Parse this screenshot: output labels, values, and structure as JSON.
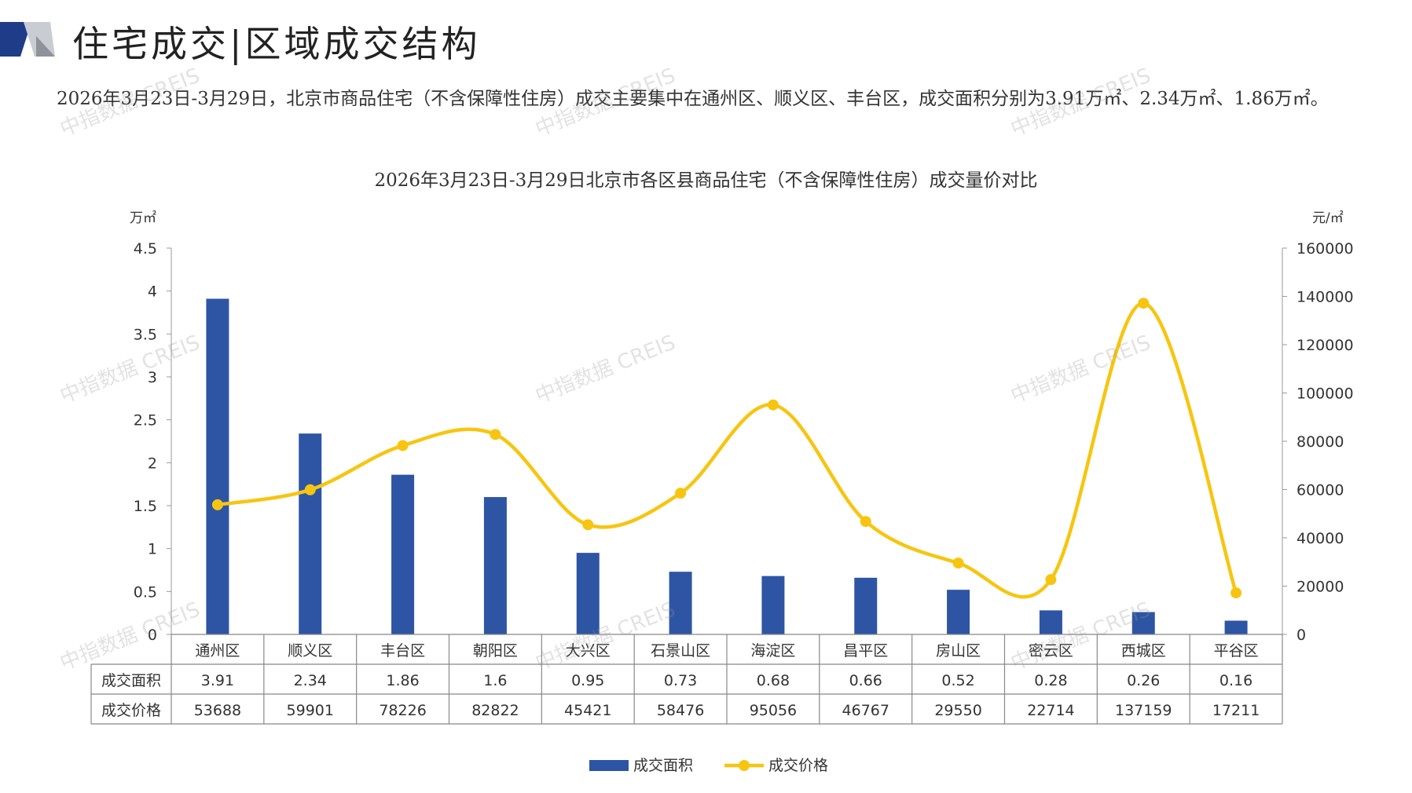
{
  "header": {
    "title": "住宅成交|区域成交结构"
  },
  "summary_text": "2026年3月23日-3月29日，北京市商品住宅（不含保障性住房）成交主要集中在通州区、顺义区、丰台区，成交面积分别为3.91万㎡、2.34万㎡、1.86万㎡。",
  "watermark": "中指数据 CREIS",
  "colors": {
    "bar": "#2E55A4",
    "line": "#F7C511",
    "logo_dark": "#1F3C88",
    "logo_light": "#C9CCD2"
  },
  "chart_data": {
    "type": "bar+line",
    "title": "2026年3月23日-3月29日北京市各区县商品住宅（不含保障性住房）成交量价对比",
    "categories": [
      "通州区",
      "顺义区",
      "丰台区",
      "朝阳区",
      "大兴区",
      "石景山区",
      "海淀区",
      "昌平区",
      "房山区",
      "密云区",
      "西城区",
      "平谷区"
    ],
    "series": [
      {
        "name": "成交面积",
        "type": "bar",
        "axis": "left",
        "values": [
          3.91,
          2.34,
          1.86,
          1.6,
          0.95,
          0.73,
          0.68,
          0.66,
          0.52,
          0.28,
          0.26,
          0.16
        ]
      },
      {
        "name": "成交价格",
        "type": "line",
        "axis": "right",
        "smooth": true,
        "values": [
          53688,
          59901,
          78226,
          82822,
          45421,
          58476,
          95056,
          46767,
          29550,
          22714,
          137159,
          17211
        ]
      }
    ],
    "table_labels": [
      "成交面积",
      "成交价格"
    ],
    "table_values": [
      [
        "3.91",
        "2.34",
        "1.86",
        "1.6",
        "0.95",
        "0.73",
        "0.68",
        "0.66",
        "0.52",
        "0.28",
        "0.26",
        "0.16"
      ],
      [
        "53688",
        "59901",
        "78226",
        "82822",
        "45421",
        "58476",
        "95056",
        "46767",
        "29550",
        "22714",
        "137159",
        "17211"
      ]
    ],
    "left_axis": {
      "unit": "万㎡",
      "ylim": [
        0,
        4.5
      ],
      "ticks": [
        "0",
        "0.5",
        "1",
        "1.5",
        "2",
        "2.5",
        "3",
        "3.5",
        "4",
        "4.5"
      ]
    },
    "right_axis": {
      "unit": "元/㎡",
      "ylim": [
        0,
        160000
      ],
      "ticks": [
        "0",
        "20000",
        "40000",
        "60000",
        "80000",
        "100000",
        "120000",
        "140000",
        "160000"
      ]
    },
    "legend": [
      "成交面积",
      "成交价格"
    ],
    "legend_position": "bottom"
  }
}
